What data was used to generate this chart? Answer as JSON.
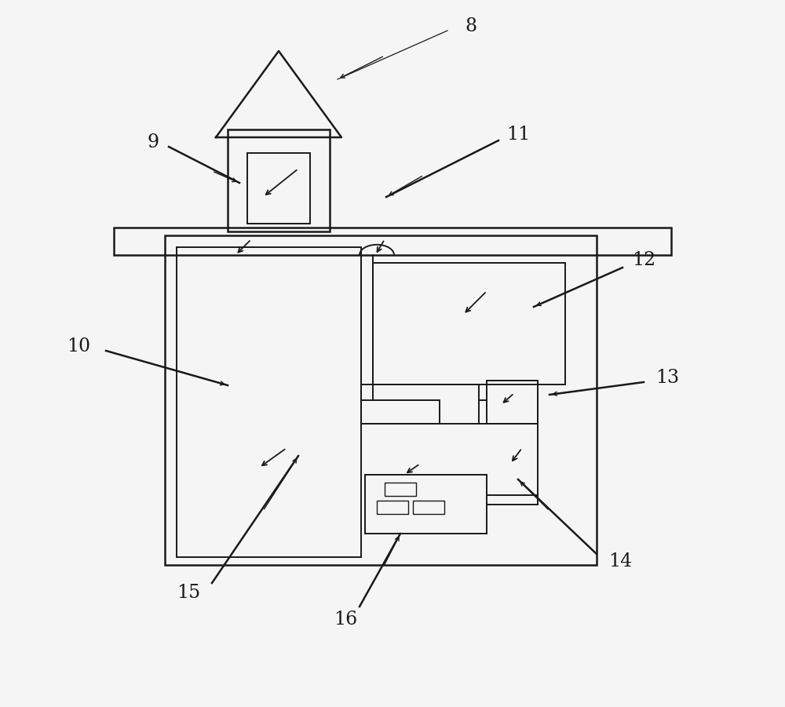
{
  "bg_color": "#f5f5f5",
  "line_color": "#1a1a1a",
  "fig_width": 10.0,
  "fig_height": 9.01,
  "lw_thick": 1.8,
  "lw_med": 1.4,
  "lw_thin": 1.0,
  "font_size": 17
}
